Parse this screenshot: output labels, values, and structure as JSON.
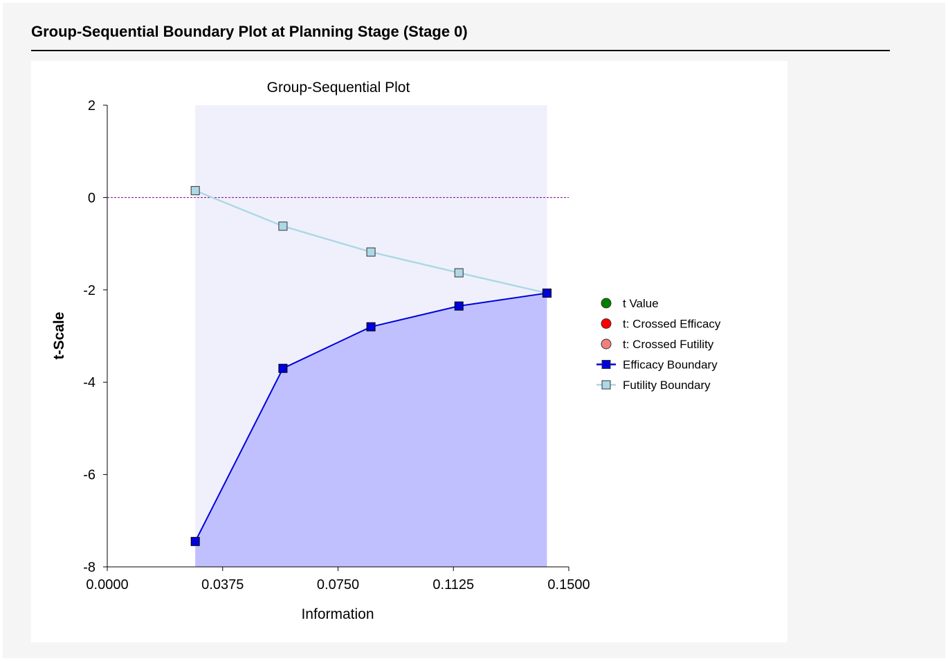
{
  "page_title": "Group-Sequential Boundary Plot at Planning Stage (Stage 0)",
  "colors": {
    "efficacy": "#0000dd",
    "efficacy_fill": "#c0c0ff",
    "futility_line": "#add8e6",
    "futility_marker": "#add8e6",
    "continue_region": "#f0f0fc",
    "reference_line": "#800080",
    "t_value": "#008000",
    "crossed_efficacy": "#ff0000",
    "crossed_futility": "#f08080"
  },
  "chart_data": {
    "type": "line",
    "title": "Group-Sequential Plot",
    "xlabel": "Information",
    "ylabel": "t-Scale",
    "xlim": [
      0,
      0.15
    ],
    "ylim": [
      -8,
      2
    ],
    "xticks": [
      "0.0000",
      "0.0375",
      "0.0750",
      "0.1125",
      "0.1500"
    ],
    "yticks": [
      "2",
      "0",
      "-2",
      "-4",
      "-6",
      "-8"
    ],
    "reference_line_y": 0,
    "grid": false,
    "legend_position": "right",
    "legend": [
      "t Value",
      "t: Crossed Efficacy",
      "t: Crossed Futility",
      "Efficacy Boundary",
      "Futility Boundary"
    ],
    "x": [
      0.0286,
      0.0571,
      0.0857,
      0.1143,
      0.1429
    ],
    "series": [
      {
        "name": "Efficacy Boundary",
        "values": [
          -7.45,
          -3.7,
          -2.8,
          -2.35,
          -2.07
        ]
      },
      {
        "name": "Futility Boundary",
        "values": [
          0.15,
          -0.62,
          -1.18,
          -1.63,
          -2.07
        ]
      }
    ]
  }
}
